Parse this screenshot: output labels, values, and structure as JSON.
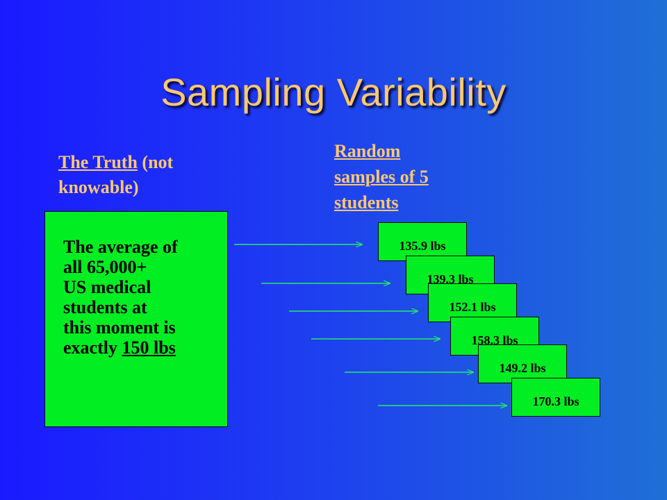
{
  "slide": {
    "title": "Sampling Variability",
    "truth_heading": {
      "underlined": "The Truth",
      "rest_line1": " (not",
      "rest_line2": "knowable)"
    },
    "samples_heading": [
      "Random",
      "samples of 5",
      "students"
    ],
    "truth_box": {
      "lines": [
        "The average of",
        "all 65,000+",
        "US medical",
        "students at",
        "this moment is"
      ],
      "last_prefix": "exactly ",
      "last_underlined": "150 lbs"
    },
    "samples": [
      "135.9 lbs",
      "139.3 lbs",
      "152.1 lbs",
      "158.3 lbs",
      "149.2 lbs",
      "170.3 lbs"
    ],
    "colors": {
      "title": "#ffc870",
      "box_fill": "#00ee22",
      "arrow": "#22ee66"
    }
  }
}
